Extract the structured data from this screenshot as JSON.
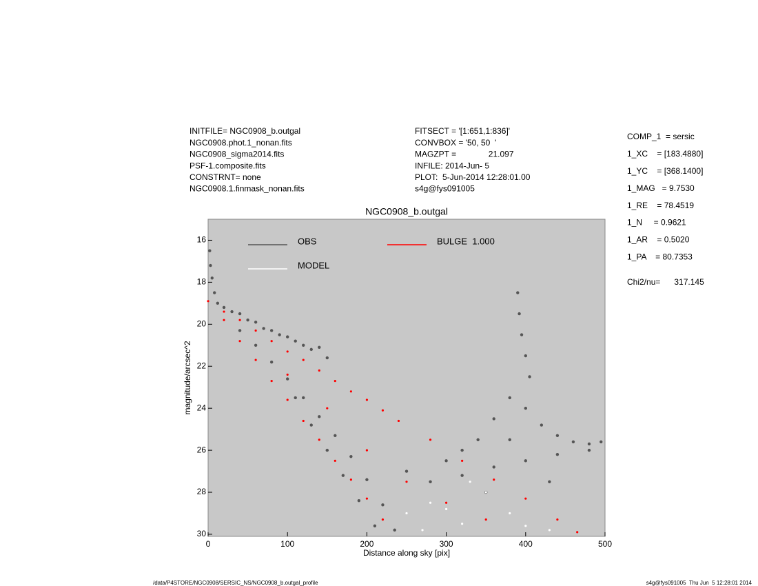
{
  "header": {
    "left": [
      "INITFILE= NGC0908_b.outgal",
      "NGC0908.phot.1_nonan.fits",
      "NGC0908_sigma2014.fits",
      "PSF-1.composite.fits",
      "CONSTRNT= none",
      "NGC0908.1.finmask_nonan.fits"
    ],
    "middle": [
      "FITSECT = '[1:651,1:836]'",
      "CONVBOX = '50, 50  '",
      "MAGZPT =              21.097",
      "INFILE: 2014-Jun- 5",
      "PLOT:  5-Jun-2014 12:28:01.00",
      "s4g@fys091005"
    ]
  },
  "params": [
    "COMP_1  = sersic",
    "1_XC    = [183.4880]",
    "1_YC    = [368.1400]",
    "1_MAG   = 9.7530",
    "1_RE    = 78.4519",
    "1_N     = 0.9621",
    "1_AR    = 0.5020",
    "1_PA    = 80.7353"
  ],
  "chi": "Chi2/nu=      317.145",
  "footer": {
    "left": "/data/P4STORE/NGC0908/SERSIC_NS/NGC0908_b.outgal_profile",
    "right": "s4g@fys091005  Thu Jun  5 12:28:01 2014"
  },
  "chart_data": {
    "type": "scatter",
    "title": "NGC0908_b.outgal",
    "x_label": "Distance along sky [pix]",
    "y_label": "magnitude/arcsec^2",
    "background": "#c8c8c8",
    "xlim": [
      0,
      500
    ],
    "xticks": [
      0,
      100,
      200,
      300,
      400,
      500
    ],
    "ylim": [
      30.1,
      15
    ],
    "yticks": [
      16,
      18,
      20,
      22,
      24,
      26,
      28,
      30
    ],
    "series": [
      {
        "name": "OBS",
        "color": "#555555",
        "x": [
          2,
          3,
          5,
          8,
          12,
          20,
          30,
          40,
          50,
          60,
          70,
          80,
          90,
          100,
          110,
          120,
          130,
          140,
          150,
          40,
          60,
          80,
          100,
          120,
          140,
          160,
          180,
          200,
          220,
          235,
          110,
          130,
          150,
          170,
          190,
          210,
          250,
          280,
          300,
          320,
          340,
          360,
          380,
          400,
          420,
          440,
          460,
          480,
          495,
          320,
          360,
          400,
          440,
          480,
          390,
          392,
          395,
          400,
          405,
          350,
          430,
          380
        ],
        "y": [
          16.5,
          17.2,
          17.8,
          18.5,
          19,
          19.2,
          19.4,
          19.5,
          19.8,
          19.9,
          20.2,
          20.3,
          20.5,
          20.6,
          20.8,
          21,
          21.2,
          21.1,
          21.6,
          20.3,
          21,
          21.8,
          22.6,
          23.5,
          24.4,
          25.3,
          26.3,
          27.4,
          28.6,
          29.8,
          23.5,
          24.8,
          26,
          27.2,
          28.4,
          29.6,
          27,
          27.5,
          26.5,
          26,
          25.5,
          24.5,
          23.5,
          24,
          24.8,
          25.3,
          25.6,
          25.7,
          25.6,
          27.2,
          26.8,
          26.5,
          26.2,
          26,
          18.5,
          19.5,
          20.5,
          21.5,
          22.5,
          28,
          27.5,
          25.5
        ]
      },
      {
        "name": "MODEL",
        "color": "#ffffff",
        "x": [
          250,
          280,
          300,
          320,
          350,
          380,
          400,
          430,
          270,
          330
        ],
        "y": [
          29,
          28.5,
          28.8,
          29.5,
          28,
          29,
          29.6,
          29.8,
          29.8,
          27.5
        ]
      },
      {
        "name": "BULGE  1.000",
        "color": "#ff0000",
        "x": [
          0,
          20,
          20,
          40,
          40,
          60,
          60,
          80,
          80,
          100,
          100,
          120,
          120,
          140,
          140,
          160,
          160,
          180,
          180,
          200,
          200,
          220,
          220,
          240,
          280,
          320,
          360,
          400,
          440,
          465,
          100,
          150,
          200,
          250,
          300,
          350
        ],
        "y": [
          18.9,
          19.4,
          19.8,
          19.8,
          20.8,
          20.3,
          21.7,
          20.8,
          22.7,
          21.3,
          23.6,
          21.7,
          24.6,
          22.2,
          25.5,
          22.7,
          26.5,
          23.2,
          27.4,
          23.6,
          28.3,
          24.1,
          29.3,
          24.6,
          25.5,
          26.5,
          27.4,
          28.3,
          29.3,
          29.9,
          22.4,
          24,
          26,
          27.5,
          28.5,
          29.3
        ]
      }
    ]
  }
}
